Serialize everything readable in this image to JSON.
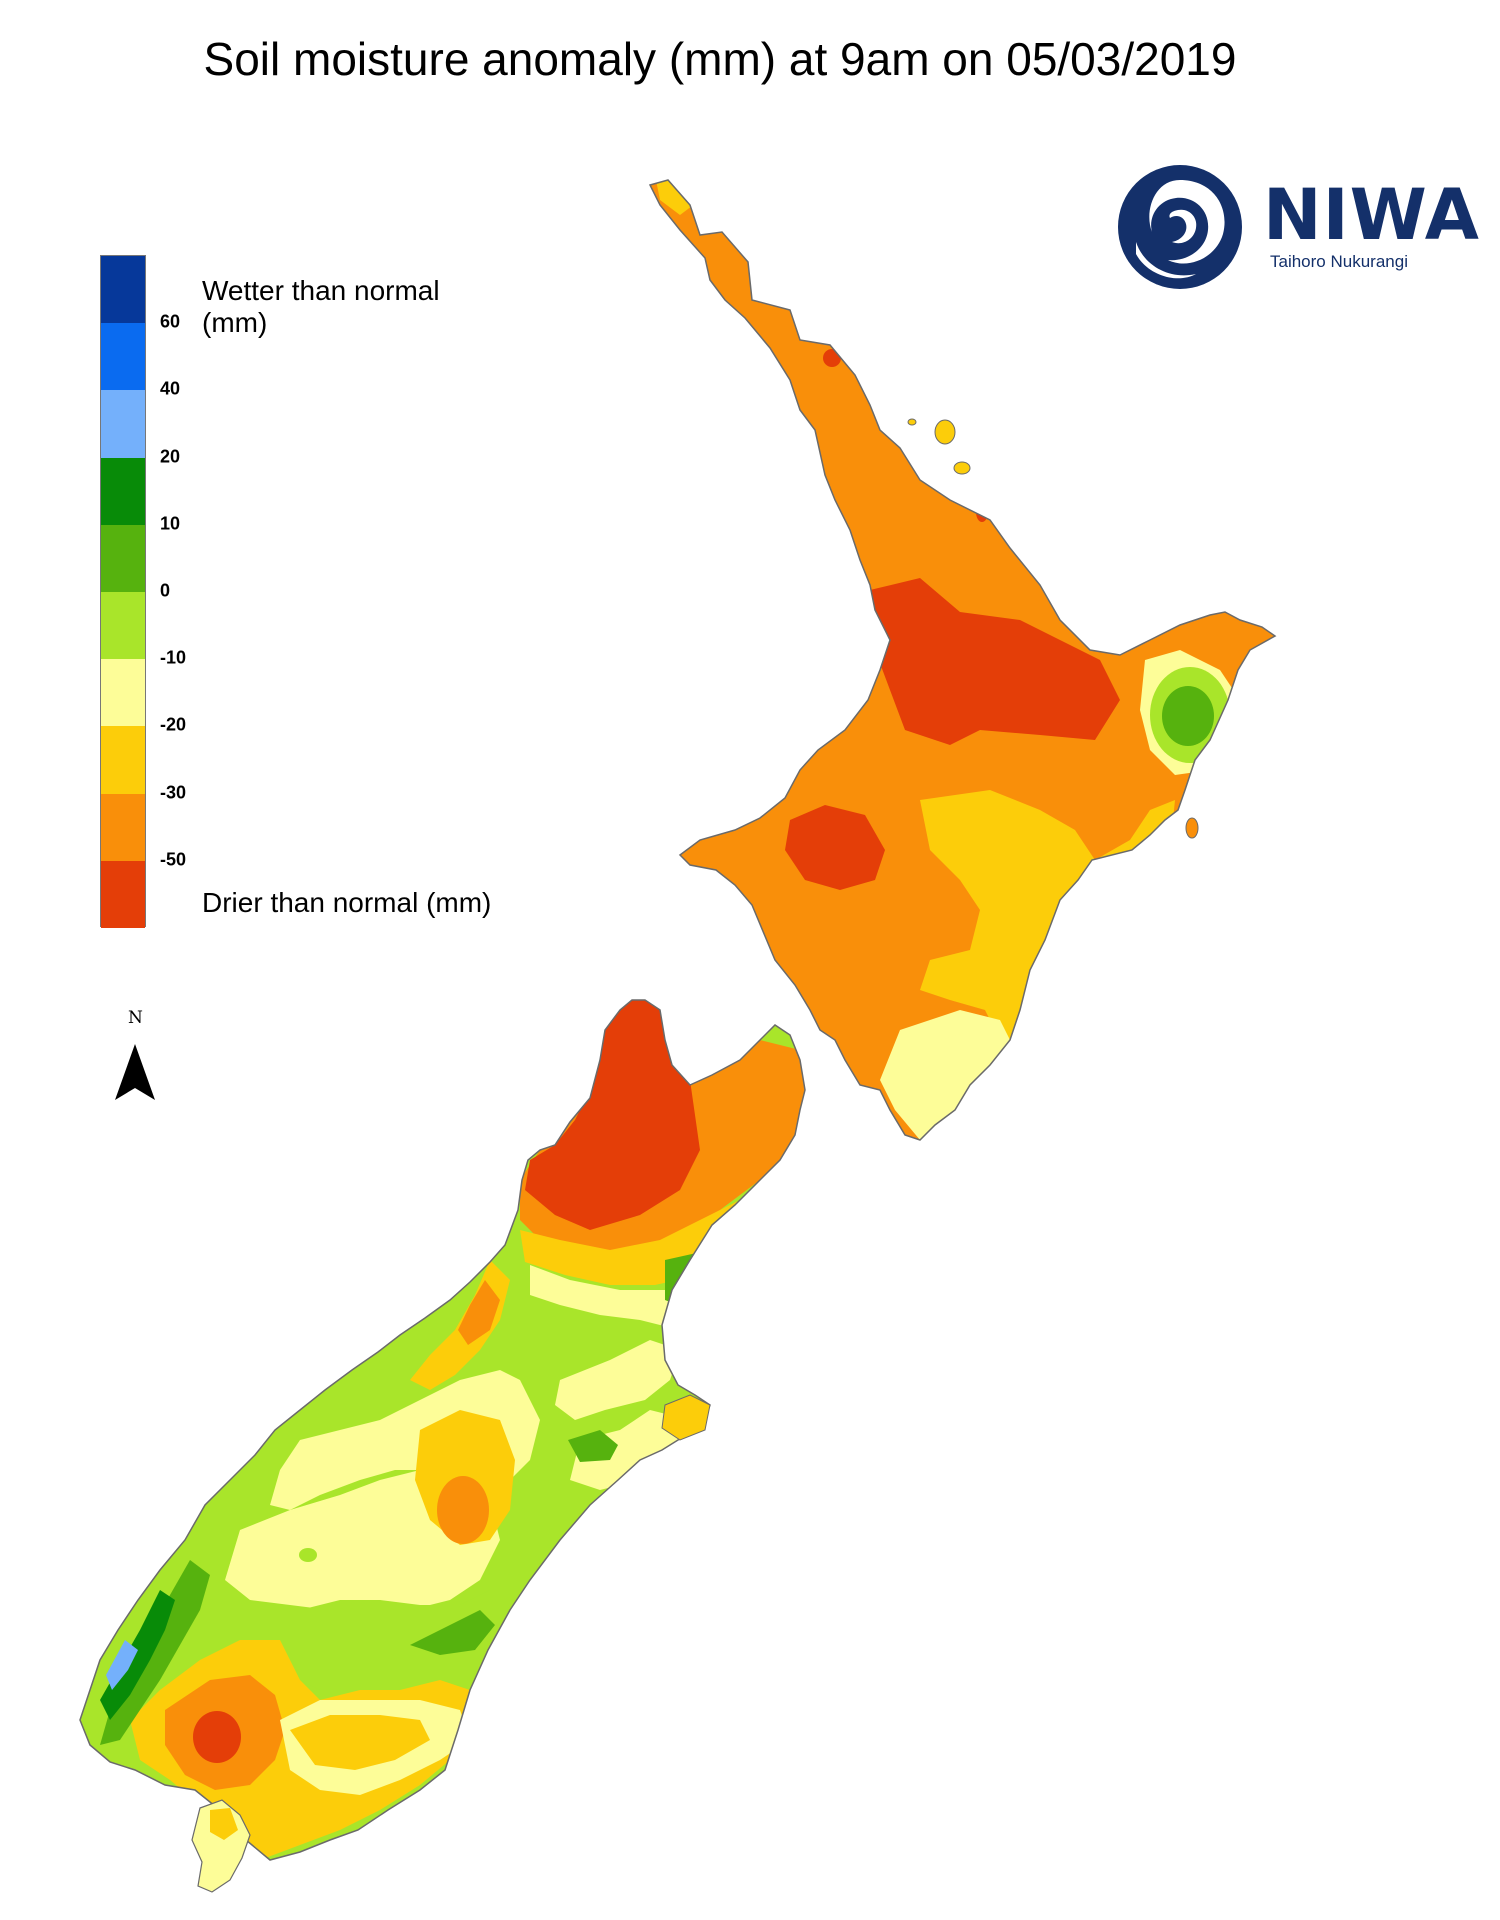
{
  "title": "Soil moisture anomaly (mm) at 9am on 05/03/2019",
  "legend": {
    "wetter_label": "Wetter than normal (mm)",
    "drier_label": "Drier than normal (mm)",
    "ticks": [
      "60",
      "40",
      "20",
      "10",
      "0",
      "-10",
      "-20",
      "-30",
      "-50"
    ],
    "colors": [
      "#06389a",
      "#0a6bf0",
      "#74b0fb",
      "#088b08",
      "#56b20e",
      "#a9e52a",
      "#fdfd98",
      "#fccd0a",
      "#f98f0a",
      "#e43e08"
    ]
  },
  "north_label": "N",
  "logo": {
    "name": "NIWA",
    "subtitle": "Taihoro Nukurangi"
  },
  "colors": {
    "drier_50": "#e43e08",
    "drier_30_50": "#f98f0a",
    "drier_20_30": "#fccd0a",
    "drier_10_20": "#fdfd98",
    "dry_0_10": "#a9e52a",
    "wet_0_10": "#56b20e",
    "wet_10_20": "#088b08",
    "wet_20_40": "#74b0fb",
    "brand": "#14306a"
  }
}
